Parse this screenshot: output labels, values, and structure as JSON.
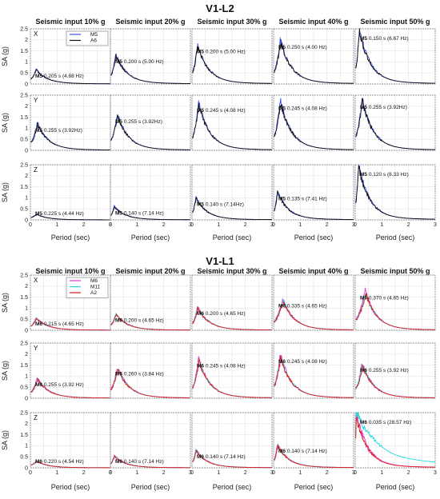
{
  "chart_data": {
    "type": "line",
    "x_range": [
      0,
      3
    ],
    "y_range": [
      0,
      2.5
    ],
    "x_ticks": [
      "0",
      "1",
      "2",
      "3"
    ],
    "y_ticks": [
      "0",
      "0.5",
      "1",
      "1.5",
      "2",
      "2.5"
    ],
    "xlabel": "Period (sec)",
    "ylabel": "SA (g)",
    "grid": true,
    "directions": [
      "X",
      "Y",
      "Z"
    ],
    "columns": [
      "Seismic input 10% g",
      "Seismic input 20% g",
      "Seismic input 30% g",
      "Seismic input 40% g",
      "Seismic input 50% g"
    ],
    "sections": [
      {
        "title": "V1-L2",
        "legend": [
          {
            "name": "M5",
            "color": "#3b50e8"
          },
          {
            "name": "A6",
            "color": "#111111"
          }
        ],
        "legend_position": "top-right of first panel",
        "rows": [
          {
            "direction": "X",
            "cells": [
              {
                "peak_period": 0.205,
                "peak_sa": 0.65,
                "label_model": "M5",
                "label_text": "0.205 s (4.88 Hz)"
              },
              {
                "peak_period": 0.2,
                "peak_sa": 1.3,
                "label_model": "M5",
                "label_text": "0.200 s (5.00 Hz)"
              },
              {
                "peak_period": 0.2,
                "peak_sa": 1.75,
                "label_model": "M5",
                "label_text": "0.200 s (5.00 Hz)"
              },
              {
                "peak_period": 0.25,
                "peak_sa": 1.95,
                "label_model": "M5",
                "label_text": "0.250 s (4.00 Hz)"
              },
              {
                "peak_period": 0.15,
                "peak_sa": 2.4,
                "label_model": "M5",
                "label_text": "0.150 s (6.67 Hz)"
              }
            ]
          },
          {
            "direction": "Y",
            "cells": [
              {
                "peak_period": 0.255,
                "peak_sa": 1.2,
                "label_model": "M5",
                "label_text": "0.255 s (3.92Hz)"
              },
              {
                "peak_period": 0.255,
                "peak_sa": 1.6,
                "label_model": "M5",
                "label_text": "0.255 s (3.92Hz)"
              },
              {
                "peak_period": 0.245,
                "peak_sa": 2.1,
                "label_model": "M5",
                "label_text": "0.245 s (4.08 Hz)"
              },
              {
                "peak_period": 0.245,
                "peak_sa": 2.2,
                "label_model": "M5",
                "label_text": "0.245 s (4.08 Hz)"
              },
              {
                "peak_period": 0.255,
                "peak_sa": 2.25,
                "label_model": "M5",
                "label_text": "0.255 s (3.92Hz)"
              }
            ]
          },
          {
            "direction": "Z",
            "cells": [
              {
                "peak_period": 0.225,
                "peak_sa": 0.25,
                "label_model": "M5",
                "label_text": "0.225 s (4.44 Hz)"
              },
              {
                "peak_period": 0.14,
                "peak_sa": 0.6,
                "label_model": "M5",
                "label_text": "0.140 s (7.14 Hz)"
              },
              {
                "peak_period": 0.14,
                "peak_sa": 1.0,
                "label_model": "M5",
                "label_text": "0.140 s (7.14Hz)"
              },
              {
                "peak_period": 0.135,
                "peak_sa": 1.25,
                "label_model": "M5",
                "label_text": "0.135 s (7.41 Hz)"
              },
              {
                "peak_period": 0.12,
                "peak_sa": 2.45,
                "label_model": "M5",
                "label_text": "0.120 s (8.33 Hz)"
              }
            ]
          }
        ]
      },
      {
        "title": "V1-L1",
        "legend": [
          {
            "name": "M6",
            "color": "#e03cd0"
          },
          {
            "name": "M11",
            "color": "#1fd8e0"
          },
          {
            "name": "A2",
            "color": "#e01818"
          }
        ],
        "legend_position": "top-right of first panel",
        "rows": [
          {
            "direction": "X",
            "cells": [
              {
                "peak_period": 0.215,
                "peak_sa": 0.55,
                "label_model": "M6",
                "label_text": "0.215 s (4.65 Hz)"
              },
              {
                "peak_period": 0.2,
                "peak_sa": 0.75,
                "label_model": "M6",
                "label_text": "0.200 s (4.65 Hz)"
              },
              {
                "peak_period": 0.2,
                "peak_sa": 1.05,
                "label_model": "M6",
                "label_text": "0.200 s (4.65 Hz)"
              },
              {
                "peak_period": 0.335,
                "peak_sa": 1.4,
                "label_model": "M6",
                "label_text": "0.335 s (4.65 Hz)"
              },
              {
                "peak_period": 0.37,
                "peak_sa": 1.75,
                "label_model": "M6",
                "label_text": "0.370 s (4.65 Hz)"
              }
            ]
          },
          {
            "direction": "Y",
            "cells": [
              {
                "peak_period": 0.255,
                "peak_sa": 0.9,
                "label_model": "M6",
                "label_text": "0.255 s (3.92 Hz)"
              },
              {
                "peak_period": 0.26,
                "peak_sa": 1.4,
                "label_model": "M6",
                "label_text": "0.260 s (3.84 Hz)"
              },
              {
                "peak_period": 0.245,
                "peak_sa": 1.75,
                "label_model": "M6",
                "label_text": "0.245 s (4.08 Hz)"
              },
              {
                "peak_period": 0.245,
                "peak_sa": 1.95,
                "label_model": "M6",
                "label_text": "0.245 s (4.08 Hz)"
              },
              {
                "peak_period": 0.255,
                "peak_sa": 1.55,
                "label_model": "M6",
                "label_text": "0.255 s (3.92 Hz)"
              }
            ]
          },
          {
            "direction": "Z",
            "cells": [
              {
                "peak_period": 0.22,
                "peak_sa": 0.3,
                "label_model": "M6",
                "label_text": "0.220 s (4.54 Hz)"
              },
              {
                "peak_period": 0.14,
                "peak_sa": 0.55,
                "label_model": "M6",
                "label_text": "0.140 s (7.14 Hz)"
              },
              {
                "peak_period": 0.14,
                "peak_sa": 0.8,
                "label_model": "M6",
                "label_text": "0.140 s (7.14 Hz)"
              },
              {
                "peak_period": 0.14,
                "peak_sa": 1.05,
                "label_model": "M6",
                "label_text": "0.140 s (7.14 Hz)"
              },
              {
                "peak_period": 0.035,
                "peak_sa": 2.5,
                "label_model": "M6",
                "label_text": "0.035 s (28.57 Hz)"
              }
            ]
          }
        ]
      }
    ]
  }
}
